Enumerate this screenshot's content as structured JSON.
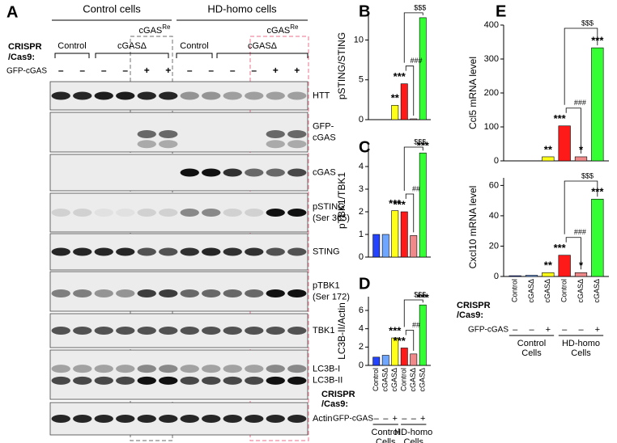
{
  "blot": {
    "panel": "A",
    "groups": [
      "Control cells",
      "HD-homo cells"
    ],
    "rescue_labels": [
      {
        "base": "cGAS",
        "sup": "Re"
      },
      {
        "base": "cGAS",
        "sup": "Re"
      }
    ],
    "crispr_label": [
      "CRISPR",
      "/Cas9:"
    ],
    "lane_groups": [
      "Control",
      "cGASΔ",
      "Control",
      "cGASΔ"
    ],
    "gfp_label": "GFP-cGAS",
    "gfp_signs": [
      "–",
      "–",
      "–",
      "–",
      "+",
      "+",
      "–",
      "–",
      "–",
      "–",
      "+",
      "+"
    ],
    "rows": [
      [
        "HTT"
      ],
      [
        "GFP-",
        "cGAS"
      ],
      [
        "cGAS"
      ],
      [
        "pSTING",
        "(Ser 365)"
      ],
      [
        "STING"
      ],
      [
        "pTBK1",
        "(Ser 172)"
      ],
      [
        "TBK1"
      ],
      [
        "LC3B-I",
        "LC3B-II"
      ],
      [
        "Actin"
      ]
    ]
  },
  "chart_data": [
    {
      "type": "bar",
      "panel": "B",
      "ylabel": "pSTING/STING",
      "categories": [
        null,
        null,
        null,
        null,
        null,
        null
      ],
      "values": [
        0,
        0,
        1.8,
        4.5,
        0.1,
        12.8
      ],
      "colors": [
        "#2343ff",
        "#6fa6ff",
        "#ffff1a",
        "#ff1a1a",
        "#f08a8a",
        "#33ff33"
      ],
      "stars": [
        null,
        null,
        "**",
        "***",
        null,
        null
      ],
      "brackets": [
        "###",
        "$$$"
      ],
      "ylim": [
        0,
        13.5
      ],
      "yticks": [
        0,
        5,
        10
      ]
    },
    {
      "type": "bar",
      "panel": "C",
      "ylabel": "pTBK1/TBK1",
      "categories": [
        null,
        null,
        null,
        null,
        null,
        null
      ],
      "values": [
        1.0,
        1.0,
        2.05,
        2.0,
        0.95,
        4.6
      ],
      "colors": [
        "#2343ff",
        "#6fa6ff",
        "#ffff1a",
        "#ff1a1a",
        "#f08a8a",
        "#33ff33"
      ],
      "stars": [
        null,
        null,
        "***",
        "***",
        null,
        "***"
      ],
      "brackets": [
        "##",
        "$$$"
      ],
      "ylim": [
        0,
        5
      ],
      "yticks": [
        0,
        1,
        2,
        3,
        4
      ]
    },
    {
      "type": "bar",
      "panel": "D",
      "ylabel": "LC3B-II/Actin",
      "categories": [
        "Control",
        "cGASΔ",
        "cGASΔ",
        "Control",
        "cGASΔ",
        "cGASΔ"
      ],
      "values": [
        0.9,
        1.1,
        3.0,
        1.9,
        1.25,
        6.6
      ],
      "colors": [
        "#2343ff",
        "#6fa6ff",
        "#ffff1a",
        "#ff1a1a",
        "#f08a8a",
        "#33ff33"
      ],
      "stars": [
        null,
        null,
        "***",
        "***",
        null,
        "***"
      ],
      "brackets": [
        "##",
        "$$$"
      ],
      "crispr_label": [
        "CRISPR",
        "/Cas9:"
      ],
      "gfp_label": "GFP-cGAS",
      "gfp_signs": [
        "–",
        "–",
        "+",
        "–",
        "–",
        "+"
      ],
      "groups": [
        [
          "Control",
          "Cells"
        ],
        [
          "HD-homo",
          "Cells"
        ]
      ],
      "ylim": [
        0,
        7.5
      ],
      "yticks": [
        0,
        2,
        4,
        6
      ]
    },
    {
      "type": "bar",
      "panel": "E",
      "ylabel": "Ccl5 mRNA level",
      "categories": [
        null,
        null,
        null,
        null,
        null,
        null
      ],
      "values": [
        0,
        0,
        12,
        103,
        12,
        333
      ],
      "colors": [
        "#2343ff",
        "#6fa6ff",
        "#ffff1a",
        "#ff1a1a",
        "#f08a8a",
        "#33ff33"
      ],
      "stars": [
        null,
        null,
        "**",
        "***",
        "*",
        "***"
      ],
      "brackets": [
        "###",
        "$$$"
      ],
      "ylim": [
        0,
        400
      ],
      "yticks": [
        0,
        100,
        200,
        300,
        400
      ]
    },
    {
      "type": "bar",
      "ylabel": "Cxcl10 mRNA level",
      "categories": [
        "Control",
        "cGASΔ",
        "cGASΔ",
        "Control",
        "cGASΔ",
        "cGASΔ"
      ],
      "values": [
        0.5,
        0.8,
        2.5,
        14,
        2.5,
        51
      ],
      "colors": [
        "#2343ff",
        "#6fa6ff",
        "#ffff1a",
        "#ff1a1a",
        "#f08a8a",
        "#33ff33"
      ],
      "stars": [
        null,
        null,
        "**",
        "***",
        "*",
        "***"
      ],
      "brackets": [
        "###",
        "$$$"
      ],
      "crispr_label": [
        "CRISPR",
        "/Cas9:"
      ],
      "gfp_label": "GFP-cGAS",
      "gfp_signs": [
        "–",
        "–",
        "+",
        "–",
        "–",
        "+"
      ],
      "groups": [
        [
          "Control",
          "Cells"
        ],
        [
          "HD-homo",
          "Cells"
        ]
      ],
      "ylim": [
        0,
        65
      ],
      "yticks": [
        0,
        20,
        40,
        60
      ]
    }
  ]
}
